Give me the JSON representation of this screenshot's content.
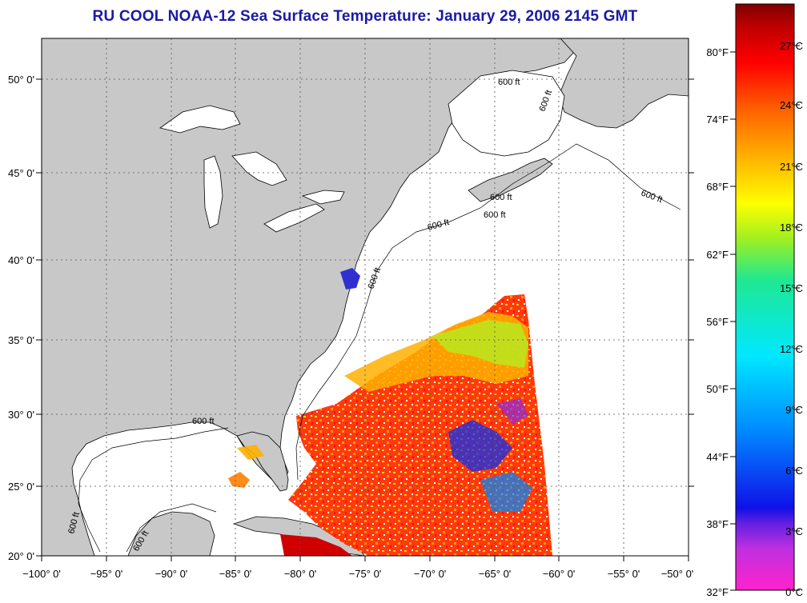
{
  "title": "RU COOL  NOAA-12  Sea Surface Temperature:  January 29, 2006 2145 GMT",
  "map": {
    "lon_ticks": [
      "−100° 0'",
      "−95° 0'",
      "−90° 0'",
      "−85° 0'",
      "−80° 0'",
      "−75° 0'",
      "−70° 0'",
      "−65° 0'",
      "−60° 0'",
      "−55° 0'",
      "−50° 0'"
    ],
    "lat_ticks": [
      "50° 0'",
      "45° 0'",
      "40° 0'",
      "35° 0'",
      "30° 0'",
      "25° 0'",
      "20° 0'"
    ],
    "isobath_labels": [
      "600 ft",
      "600 ft",
      "600 ft",
      "600 ft",
      "600 ft",
      "600 ft",
      "600 ft",
      "600 ft",
      "600 ft",
      "600 ft"
    ],
    "colors": {
      "land": "#c8c8c8",
      "ocean": "#ffffff",
      "title": "#1a1aa6"
    }
  },
  "colorbar": {
    "fahrenheit": [
      "80°F",
      "74°F",
      "68°F",
      "62°F",
      "56°F",
      "50°F",
      "44°F",
      "38°F",
      "32°F"
    ],
    "celsius": [
      "27°C",
      "24°C",
      "21°C",
      "18°C",
      "15°C",
      "12°C",
      "9°C",
      "6°C",
      "3°C",
      "0°C"
    ],
    "colors": [
      "#ff22cc",
      "#8a2be2",
      "#1010e8",
      "#0088ff",
      "#00e8ff",
      "#20e890",
      "#a0f020",
      "#ffff00",
      "#ffb000",
      "#ff6000",
      "#ff0000",
      "#b00000",
      "#800000"
    ]
  }
}
